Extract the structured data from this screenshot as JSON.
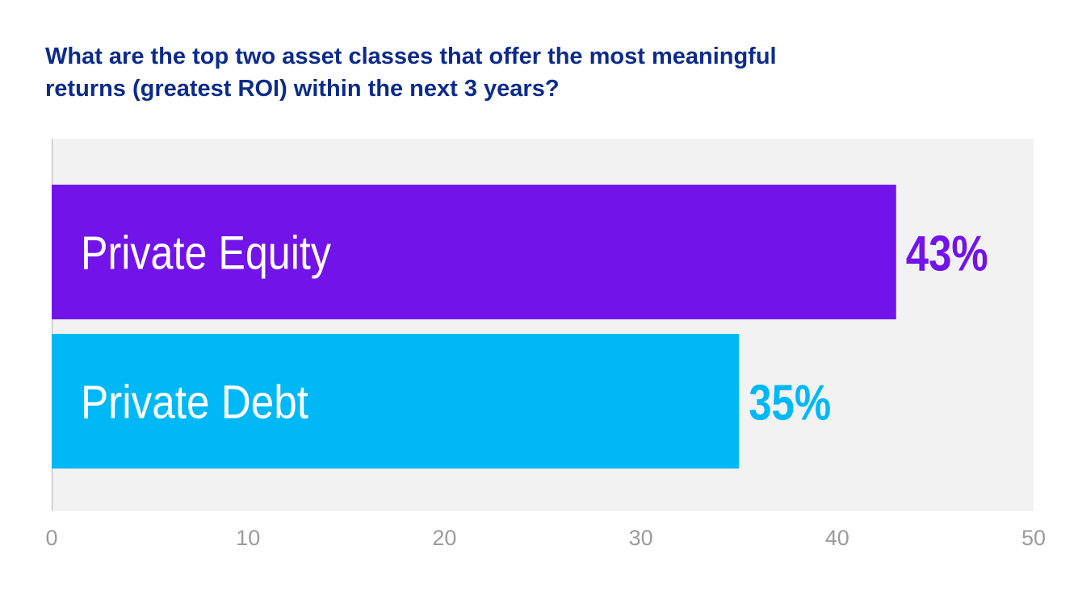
{
  "chart_data": {
    "type": "bar",
    "orientation": "horizontal",
    "title_lines": [
      "What are the top two asset classes that offer the most meaningful",
      "returns (greatest ROI) within the next 3 years?"
    ],
    "categories": [
      "Private Equity",
      "Private Debt"
    ],
    "values": [
      43,
      35
    ],
    "value_labels": [
      "43%",
      "35%"
    ],
    "colors": [
      "#7213ea",
      "#00b8f5"
    ],
    "xlim": [
      0,
      50
    ],
    "xticks": [
      "0",
      "10",
      "20",
      "30",
      "40",
      "50"
    ],
    "grid": false,
    "background_color": "#f2f2f2",
    "title_color": "#0c2b8c",
    "tick_color": "#9b9b9b"
  }
}
